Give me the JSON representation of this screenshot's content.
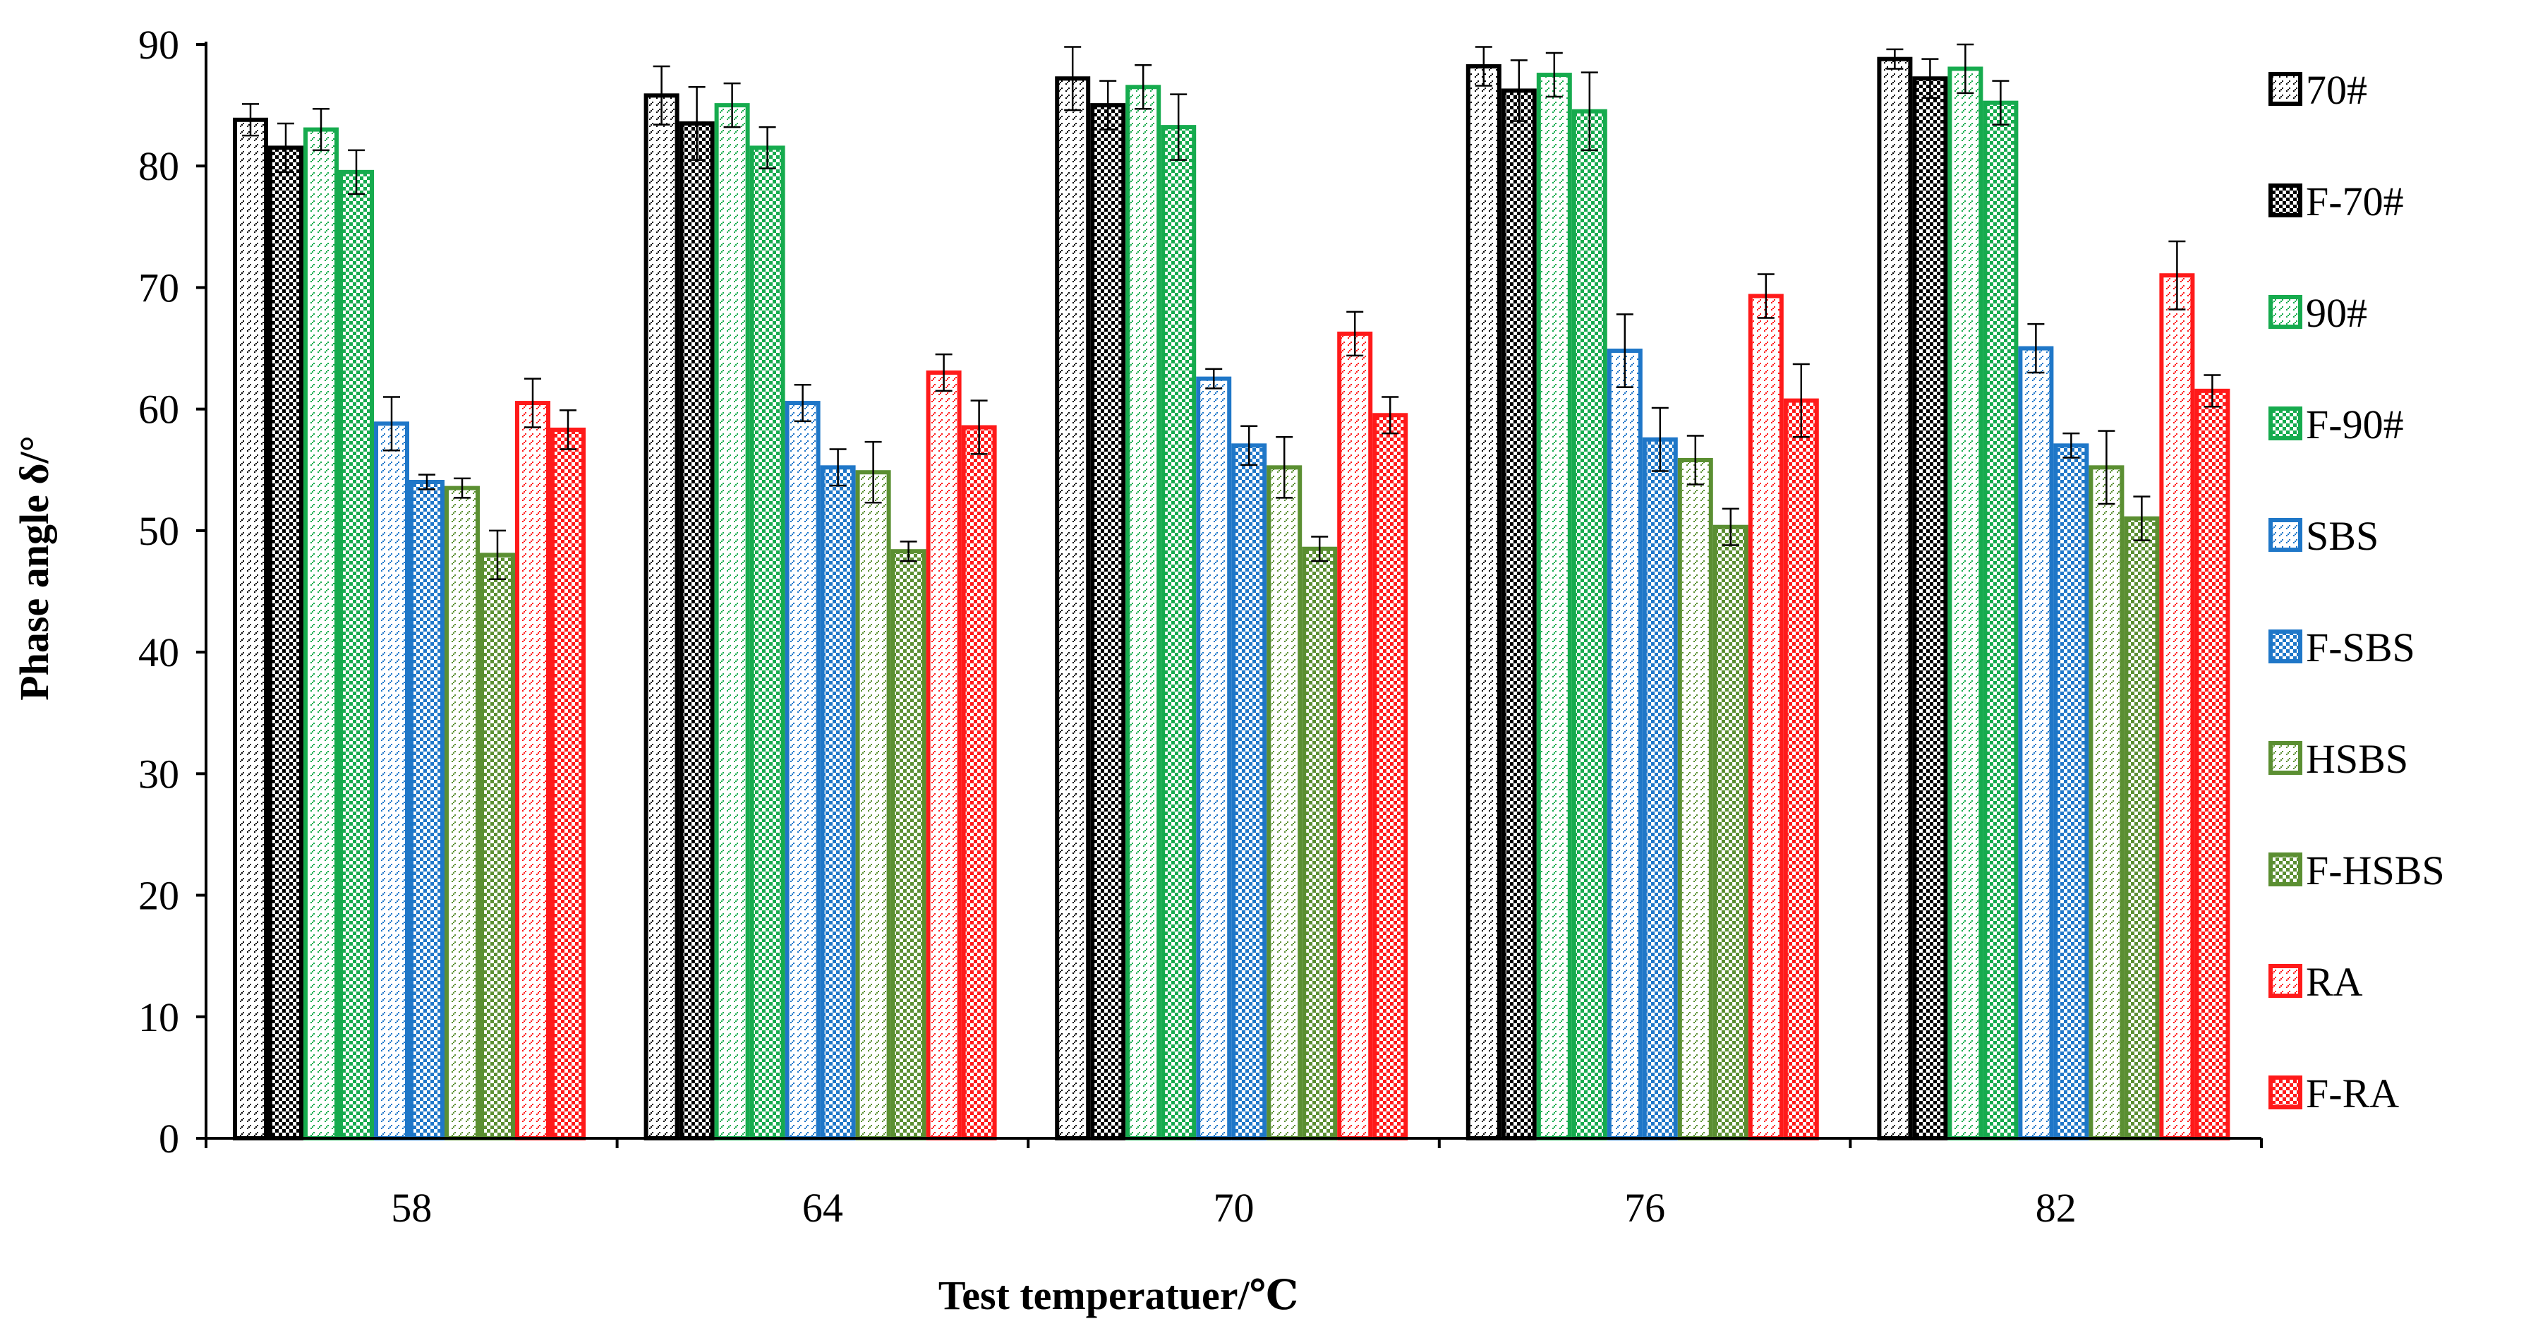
{
  "chart_data": {
    "type": "bar",
    "title": "",
    "xlabel": "Test temperatuer/℃",
    "ylabel": "Phase angle δ/°",
    "ylim": [
      0,
      90
    ],
    "yticks": [
      0,
      10,
      20,
      30,
      40,
      50,
      60,
      70,
      80,
      90
    ],
    "categories": [
      "58",
      "64",
      "70",
      "76",
      "82"
    ],
    "legend_position": "right",
    "grid": false,
    "series": [
      {
        "name": "70#",
        "color": "#000000",
        "pattern": "light",
        "values": [
          83.8,
          85.8,
          87.2,
          88.2,
          88.8
        ],
        "errors": [
          1.3,
          2.4,
          2.6,
          1.6,
          0.8
        ]
      },
      {
        "name": "F-70#",
        "color": "#000000",
        "pattern": "check",
        "values": [
          81.5,
          83.5,
          85.0,
          86.2,
          87.2
        ],
        "errors": [
          2.0,
          3.0,
          2.0,
          2.5,
          1.6
        ]
      },
      {
        "name": "90#",
        "color": "#16ab4e",
        "pattern": "light",
        "values": [
          83.0,
          85.0,
          86.5,
          87.5,
          88.0
        ],
        "errors": [
          1.7,
          1.8,
          1.8,
          1.8,
          2.0
        ]
      },
      {
        "name": "F-90#",
        "color": "#16ab4e",
        "pattern": "check",
        "values": [
          79.5,
          81.5,
          83.2,
          84.5,
          85.2
        ],
        "errors": [
          1.8,
          1.7,
          2.7,
          3.2,
          1.8
        ]
      },
      {
        "name": "SBS",
        "color": "#1f77c8",
        "pattern": "light",
        "values": [
          58.8,
          60.5,
          62.5,
          64.8,
          65.0
        ],
        "errors": [
          2.2,
          1.5,
          0.8,
          3.0,
          2.0
        ]
      },
      {
        "name": "F-SBS",
        "color": "#1f77c8",
        "pattern": "check",
        "values": [
          54.0,
          55.2,
          57.0,
          57.5,
          57.0
        ],
        "errors": [
          0.6,
          1.5,
          1.6,
          2.6,
          1.0
        ]
      },
      {
        "name": "HSBS",
        "color": "#5b8f32",
        "pattern": "light",
        "values": [
          53.5,
          54.8,
          55.2,
          55.8,
          55.2
        ],
        "errors": [
          0.8,
          2.5,
          2.5,
          2.0,
          3.0
        ]
      },
      {
        "name": "F-HSBS",
        "color": "#5b8f32",
        "pattern": "check",
        "values": [
          48.0,
          48.3,
          48.5,
          50.3,
          51.0
        ],
        "errors": [
          2.0,
          0.8,
          1.0,
          1.5,
          1.8
        ]
      },
      {
        "name": "RA",
        "color": "#ff1a1a",
        "pattern": "light",
        "values": [
          60.5,
          63.0,
          66.2,
          69.3,
          71.0
        ],
        "errors": [
          2.0,
          1.5,
          1.8,
          1.8,
          2.8
        ]
      },
      {
        "name": "F-RA",
        "color": "#ff1a1a",
        "pattern": "check",
        "values": [
          58.3,
          58.5,
          59.5,
          60.7,
          61.5
        ],
        "errors": [
          1.6,
          2.2,
          1.5,
          3.0,
          1.3
        ]
      }
    ]
  }
}
